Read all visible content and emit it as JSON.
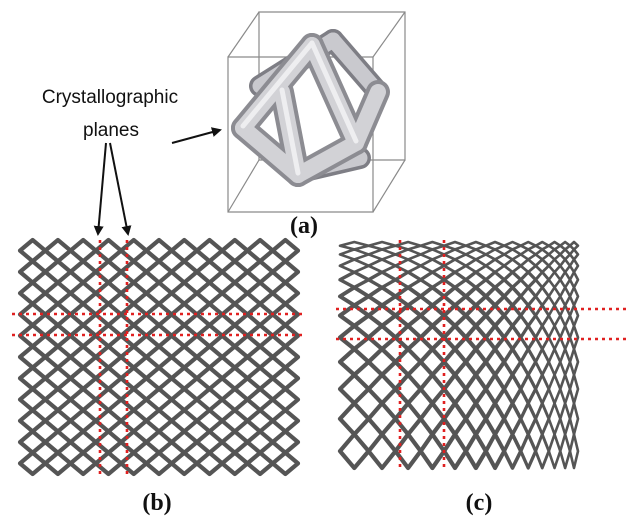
{
  "annotation": {
    "line1": "Crystallographic",
    "line2": "planes"
  },
  "panels": [
    {
      "id": "a",
      "label": "(a)"
    },
    {
      "id": "b",
      "label": "(b)"
    },
    {
      "id": "c",
      "label": "(c)"
    }
  ],
  "colors": {
    "strut": "#555555",
    "strut_highlight": "#d2d2d6",
    "strut_shadow": "#8c8c92",
    "plane_line": "#e02020",
    "box_edge": "#8a8a8a",
    "text": "#111111"
  },
  "lattice_b": {
    "columns": 11,
    "rows": 11
  },
  "lattice_c": {
    "columns": 13,
    "rows": 11
  }
}
